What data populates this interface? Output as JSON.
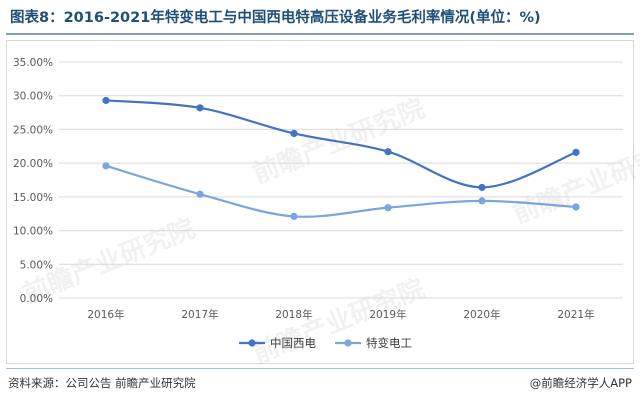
{
  "header": {
    "title": "图表8：2016-2021年特变电工与中国西电特高压设备业务毛利率情况(单位：%)"
  },
  "footer": {
    "source": "资料来源：公司公告 前瞻产业研究院",
    "credit": "@前瞻经济学人APP"
  },
  "watermark": "前瞻产业研究院",
  "chart_data": {
    "type": "line",
    "title": "图表8：2016-2021年特变电工与中国西电特高压设备业务毛利率情况(单位：%)",
    "xlabel": "",
    "ylabel": "",
    "categories": [
      "2016年",
      "2017年",
      "2018年",
      "2019年",
      "2020年",
      "2021年"
    ],
    "y_ticks": [
      "0.00%",
      "5.00%",
      "10.00%",
      "15.00%",
      "20.00%",
      "25.00%",
      "30.00%",
      "35.00%"
    ],
    "ylim": [
      0,
      35
    ],
    "grid": true,
    "legend_position": "bottom",
    "series": [
      {
        "name": "中国西电",
        "color": "#4472c4",
        "values": [
          29.3,
          28.2,
          24.4,
          21.7,
          16.4,
          21.6
        ]
      },
      {
        "name": "特变电工",
        "color": "#7aa6dc",
        "values": [
          19.6,
          15.4,
          12.1,
          13.4,
          14.4,
          13.5
        ]
      }
    ]
  }
}
